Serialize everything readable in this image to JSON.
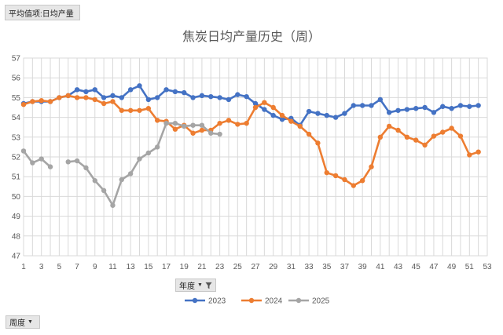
{
  "controls": {
    "value_field": "平均值项:日均产量",
    "series_field": "年度",
    "axis_field": "周度"
  },
  "chart_data": {
    "type": "line",
    "title": "焦炭日均产量历史（周）",
    "xlabel": "",
    "ylabel": "",
    "xlim": [
      1,
      53
    ],
    "ylim": [
      47,
      57
    ],
    "x_ticks": [
      1,
      3,
      5,
      7,
      9,
      11,
      13,
      15,
      17,
      19,
      21,
      23,
      25,
      27,
      29,
      31,
      33,
      35,
      37,
      39,
      41,
      43,
      45,
      47,
      49,
      51,
      53
    ],
    "y_ticks": [
      47,
      48,
      49,
      50,
      51,
      52,
      53,
      54,
      55,
      56,
      57
    ],
    "grid": true,
    "legend_position": "bottom",
    "series": [
      {
        "name": "2023",
        "color": "#4472C4",
        "values": [
          54.7,
          54.8,
          54.8,
          54.8,
          55.0,
          55.1,
          55.4,
          55.3,
          55.4,
          55.0,
          55.1,
          55.0,
          55.4,
          55.6,
          54.9,
          55.0,
          55.4,
          55.3,
          55.25,
          55.0,
          55.1,
          55.05,
          55.0,
          54.9,
          55.15,
          55.05,
          54.7,
          54.4,
          54.1,
          53.9,
          53.95,
          53.6,
          54.3,
          54.2,
          54.1,
          54.0,
          54.2,
          54.6,
          54.6,
          54.6,
          54.9,
          54.25,
          54.35,
          54.4,
          54.45,
          54.5,
          54.25,
          54.55,
          54.45,
          54.6,
          54.55,
          54.6
        ]
      },
      {
        "name": "2024",
        "color": "#ED7D31",
        "values": [
          54.65,
          54.8,
          54.85,
          54.8,
          55.0,
          55.1,
          55.0,
          55.0,
          54.9,
          54.7,
          54.8,
          54.35,
          54.35,
          54.35,
          54.45,
          53.85,
          53.8,
          53.4,
          53.6,
          53.2,
          53.35,
          53.35,
          53.7,
          53.85,
          53.65,
          53.7,
          54.5,
          54.75,
          54.5,
          54.1,
          53.8,
          53.55,
          53.15,
          52.7,
          51.2,
          51.05,
          50.85,
          50.55,
          50.8,
          51.5,
          53.0,
          53.55,
          53.35,
          53.0,
          52.85,
          52.6,
          53.05,
          53.25,
          53.45,
          53.05,
          52.1,
          52.25
        ]
      },
      {
        "name": "2025",
        "color": "#A5A5A5",
        "values": [
          52.3,
          51.7,
          51.9,
          51.5,
          null,
          51.75,
          51.8,
          51.45,
          50.8,
          50.3,
          49.55,
          50.85,
          51.15,
          51.9,
          52.2,
          52.5,
          53.7,
          53.7,
          53.55,
          53.6,
          53.6,
          53.2,
          53.15
        ]
      }
    ]
  }
}
